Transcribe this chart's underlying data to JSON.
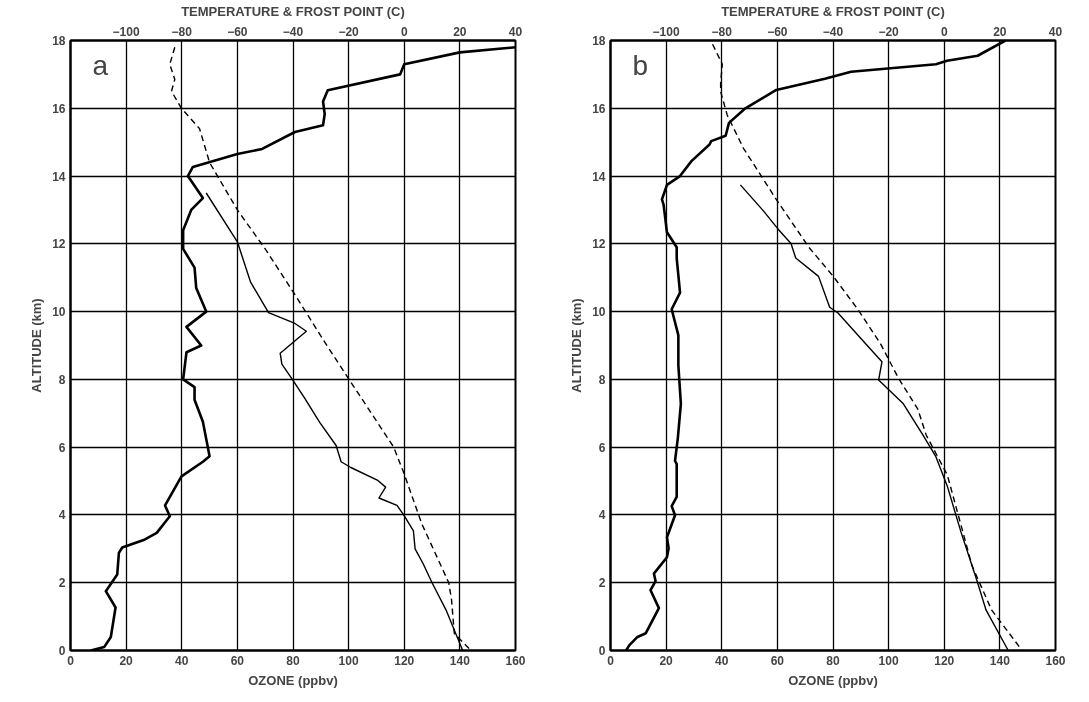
{
  "chart_data": [
    {
      "type": "line",
      "xlabel": "OZONE (ppbv)",
      "ylabel": "ALTITUDE (km)",
      "x2label": "TEMPERATURE & FROST POINT (C)",
      "annotations": [
        "a"
      ],
      "xlim": [
        0,
        160
      ],
      "xticks": [
        0,
        20,
        40,
        60,
        80,
        100,
        120,
        140,
        160
      ],
      "x2lim": [
        -120,
        40
      ],
      "x2ticks": [
        -100,
        -80,
        -60,
        -40,
        -20,
        0,
        20,
        40
      ],
      "ylim": [
        0,
        18
      ],
      "yticks": [
        0,
        2,
        4,
        6,
        8,
        10,
        12,
        14,
        16,
        18
      ],
      "grid": true,
      "series": [
        {
          "color": "#000000",
          "line_style": "solid",
          "x": [
            7.3,
            12.1,
            14.5,
            16.2,
            12.7,
            16.8,
            17.4,
            18.6,
            26.3,
            31,
            35.7,
            34,
            39.9,
            47.6,
            50,
            47.6,
            44.6,
            44.6,
            40.5,
            41.7,
            47,
            41.7,
            48.8,
            45.2,
            44.6,
            40.5,
            40.5,
            43.4,
            47.6,
            42.2,
            44,
            60,
            68.9,
            80.7,
            90.8,
            91.4,
            90.8,
            92.5,
            118.5,
            120,
            140,
            160
          ],
          "values": [
            0,
            0.1,
            0.4,
            1.27,
            1.75,
            2.24,
            2.88,
            3.04,
            3.26,
            3.47,
            3.96,
            4.28,
            5.14,
            5.57,
            5.73,
            6.75,
            7.4,
            7.77,
            8,
            8.8,
            9.0,
            9.55,
            10.0,
            10.7,
            11.3,
            11.85,
            12.4,
            13.0,
            13.35,
            14.0,
            14.27,
            14.65,
            14.8,
            15.3,
            15.5,
            15.83,
            16.2,
            16.53,
            17.0,
            17.3,
            17.65,
            17.8
          ]
        },
        {
          "color": "#000000",
          "line_style": "solid",
          "axis": "x2",
          "x": [
            -71.2,
            -60,
            -55.3,
            -48.8,
            -39.3,
            -35.2,
            -44.6,
            -44,
            -40,
            -35.7,
            -30.4,
            -24.5,
            -22.7,
            -19.2,
            -9.7,
            -6.7,
            -9.1,
            -2.6,
            -0.2,
            3.3,
            3.9,
            6.8,
            10,
            15,
            21
          ],
          "values": [
            13.5,
            12.06,
            10.88,
            9.97,
            9.65,
            9.42,
            8.77,
            8.45,
            7.97,
            7.43,
            6.73,
            6.05,
            5.57,
            5.4,
            5.03,
            4.82,
            4.5,
            4.28,
            4.0,
            3.53,
            3.0,
            2.56,
            2.0,
            1.2,
            0
          ]
        },
        {
          "color": "#000000",
          "line_style": "dashed",
          "axis": "x2",
          "x": [
            -82.5,
            -84.3,
            -82.5,
            -83.7,
            -80.1,
            -73.6,
            -70,
            -60,
            -50,
            -39.3,
            -28.6,
            -20.4,
            -3.8,
            -0.2,
            6.3,
            16,
            17,
            18,
            24
          ],
          "values": [
            17.8,
            17.3,
            16.85,
            16.5,
            16.0,
            15.4,
            14.4,
            13.0,
            11.85,
            10.5,
            9.1,
            8.07,
            6.0,
            5.25,
            3.74,
            2.0,
            1.5,
            0.5,
            0
          ]
        }
      ]
    },
    {
      "type": "line",
      "xlabel": "OZONE (ppbv)",
      "ylabel": "ALTITUDE (km)",
      "x2label": "TEMPERATURE & FROST POINT (C)",
      "annotations": [
        "b"
      ],
      "xlim": [
        0,
        160
      ],
      "xticks": [
        0,
        20,
        40,
        60,
        80,
        100,
        120,
        140,
        160
      ],
      "x2lim": [
        -120,
        40
      ],
      "x2ticks": [
        -100,
        -80,
        -60,
        -40,
        -20,
        0,
        20,
        40
      ],
      "ylim": [
        0,
        18
      ],
      "yticks": [
        0,
        2,
        4,
        6,
        8,
        10,
        12,
        14,
        16,
        18
      ],
      "grid": true,
      "series": [
        {
          "color": "#000000",
          "line_style": "solid",
          "x": [
            5.6,
            6.8,
            9.7,
            12.7,
            17.4,
            14.4,
            16.2,
            15.6,
            20.3,
            20.9,
            20.3,
            23.2,
            22,
            23.8,
            23.8,
            23.2,
            24.2,
            25.3,
            24.4,
            24.4,
            22,
            25,
            23.8,
            23.8,
            20.3,
            19.1,
            18.5,
            20.3,
            25,
            29.1,
            35.6,
            36.2,
            41.4,
            42.6,
            48.5,
            59.6,
            77.1,
            86.5,
            117,
            121,
            132,
            142
          ],
          "values": [
            0,
            0.16,
            0.4,
            0.51,
            1.25,
            1.78,
            2.05,
            2.27,
            2.75,
            3.02,
            3.34,
            3.99,
            4.26,
            4.53,
            5.5,
            5.6,
            6.26,
            7.28,
            8.41,
            9.3,
            10.07,
            10.56,
            11.58,
            11.9,
            12.34,
            13.15,
            13.31,
            13.74,
            14.0,
            14.44,
            14.93,
            15.03,
            15.19,
            15.57,
            16.0,
            16.54,
            16.87,
            17.08,
            17.3,
            17.4,
            17.55,
            18.0
          ]
        },
        {
          "color": "#000000",
          "line_style": "solid",
          "axis": "x2",
          "x": [
            -73.3,
            -65.1,
            -59.8,
            -55.1,
            -53.4,
            -45.2,
            -41.2,
            -38.2,
            -27.7,
            -22.4,
            -23.6,
            -14.7,
            -7.7,
            -3,
            1.1,
            6,
            12,
            15,
            23
          ],
          "values": [
            13.74,
            12.98,
            12.44,
            12.01,
            11.58,
            11.04,
            10.13,
            9.96,
            9.0,
            8.52,
            7.98,
            7.28,
            6.36,
            5.72,
            4.85,
            3.5,
            2.0,
            1.2,
            0
          ]
        },
        {
          "color": "#000000",
          "line_style": "dashed",
          "axis": "x2",
          "x": [
            -83.3,
            -79.8,
            -80.4,
            -80.4,
            -78,
            -72.2,
            -60.4,
            -48.7,
            -39.9,
            -31.1,
            -22.9,
            -16.5,
            -9.5,
            -6.5,
            1.1,
            10,
            17,
            28
          ],
          "values": [
            17.89,
            17.3,
            16.76,
            16.49,
            15.79,
            14.82,
            13.31,
            11.9,
            11.04,
            10.07,
            9.05,
            8.04,
            7.12,
            6.36,
            5.18,
            2.5,
            1.2,
            0
          ]
        }
      ]
    }
  ]
}
